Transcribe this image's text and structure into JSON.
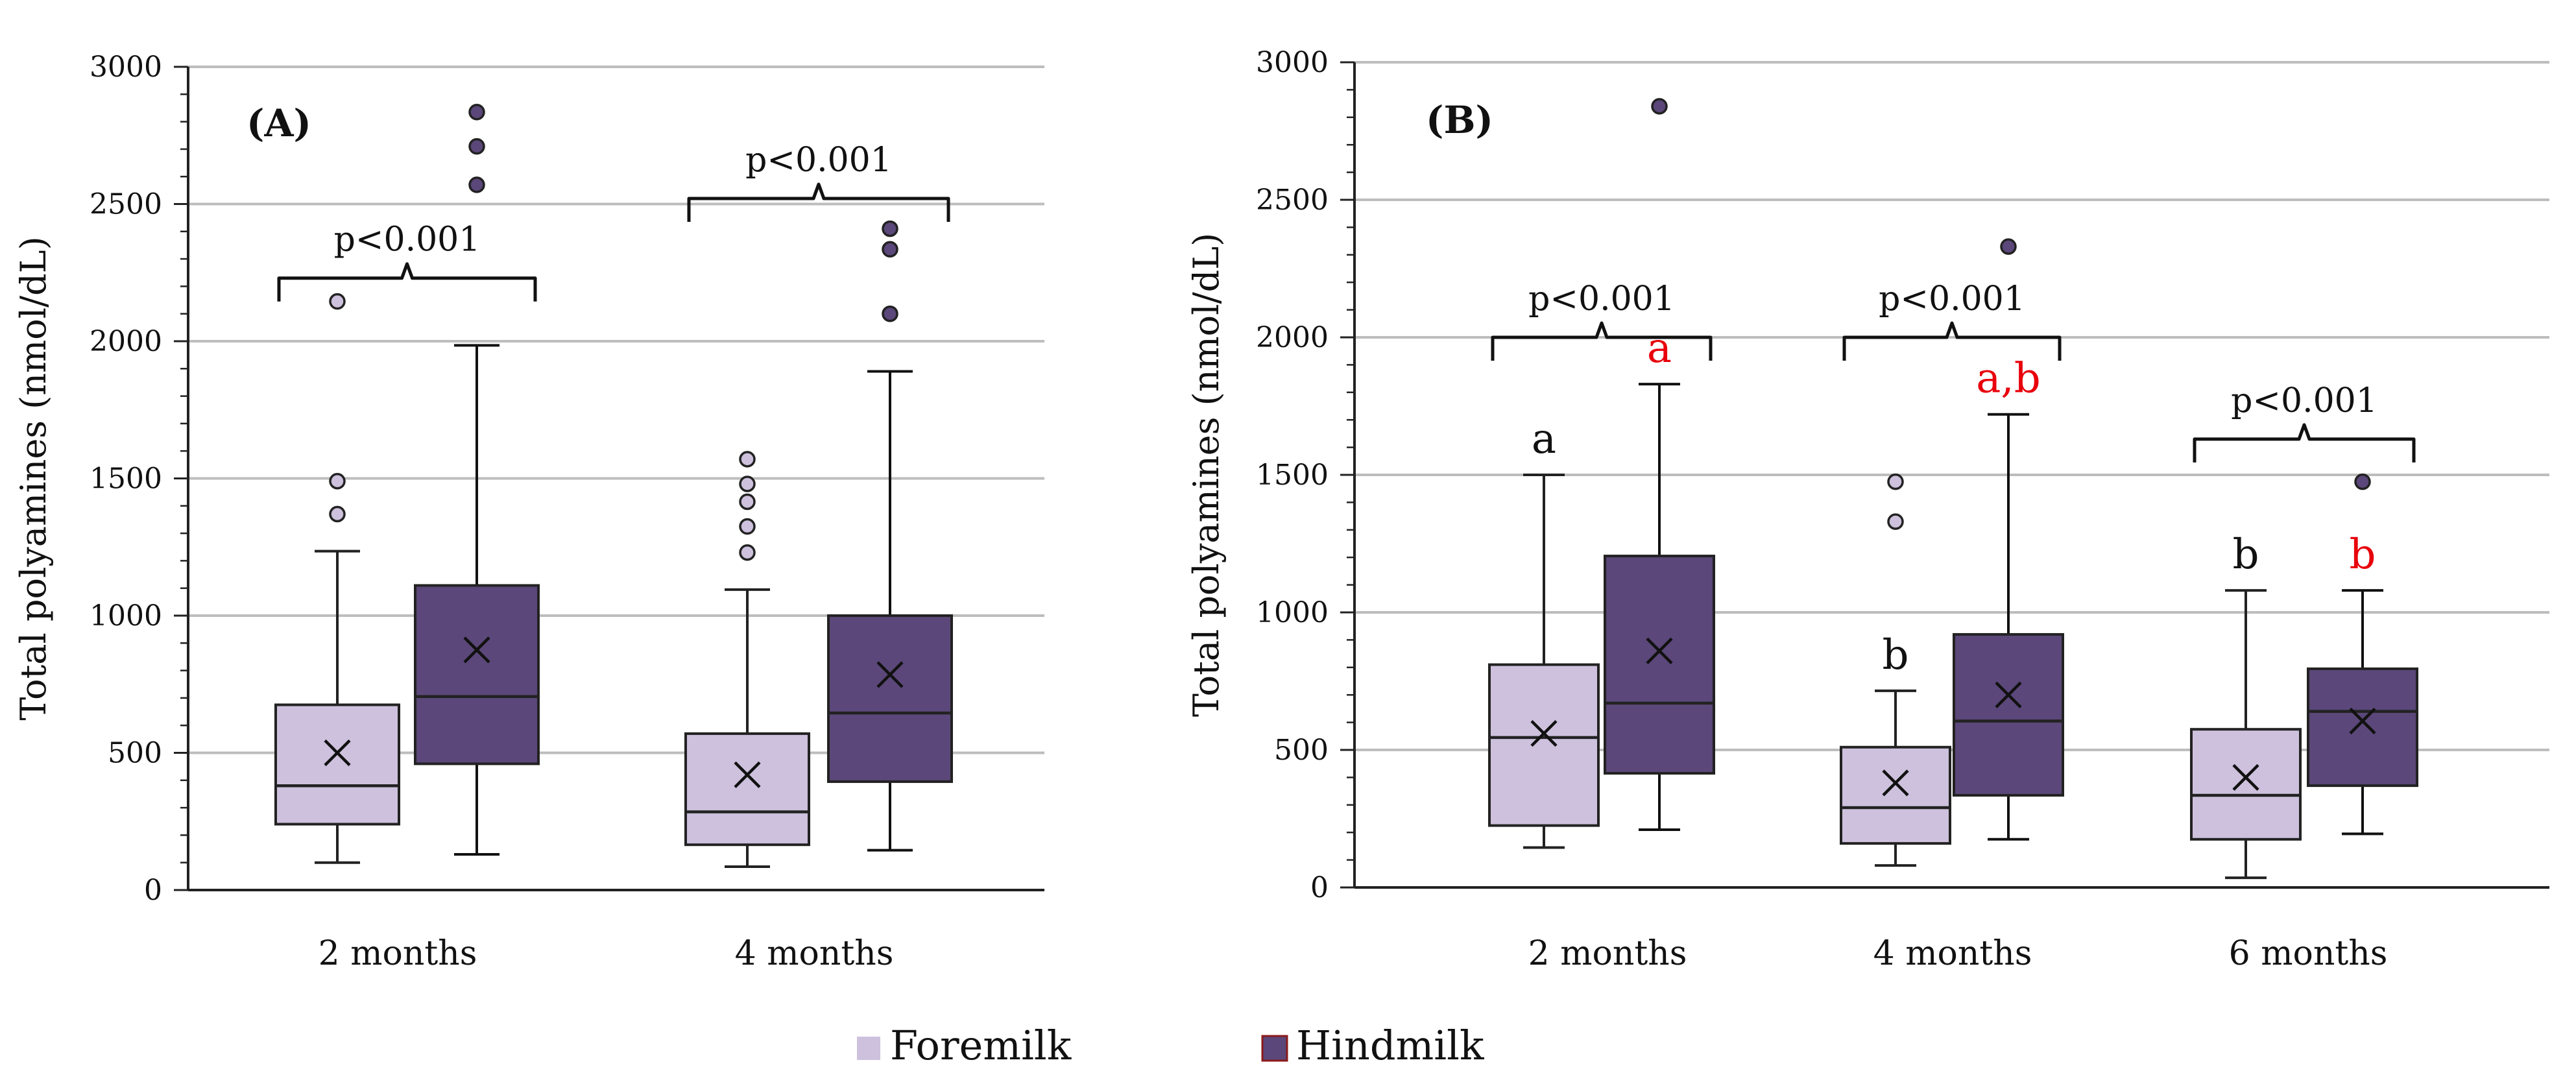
{
  "colors": {
    "foremilk": "#cdc1dd",
    "hindmilk": "#5b4779",
    "outline": "#222222",
    "grid": "#bdbdbd",
    "red_letter": "#e8000b"
  },
  "legend": {
    "foremilk": "Foremilk",
    "hindmilk": "Hindmilk"
  },
  "chart_data": [
    {
      "type": "box",
      "panel_label": "(A)",
      "ylabel": "Total polyamines (nmol/dL)",
      "ylim": [
        0,
        3000
      ],
      "yticks": [
        0,
        500,
        1000,
        1500,
        2000,
        2500,
        3000
      ],
      "ytick_labels": [
        "0",
        "500",
        "1000",
        "1500",
        "2000",
        "2500",
        "3000"
      ],
      "grid": true,
      "categories": [
        "2 months",
        "4 months"
      ],
      "series": [
        {
          "name": "Foremilk",
          "boxes": [
            {
              "whisker_low": 100,
              "q1": 240,
              "median": 380,
              "q3": 675,
              "whisker_high": 1235,
              "mean": 500,
              "outliers": [
                1370,
                1490,
                2145
              ],
              "letter": ""
            },
            {
              "whisker_low": 85,
              "q1": 165,
              "median": 285,
              "q3": 570,
              "whisker_high": 1095,
              "mean": 420,
              "outliers": [
                1230,
                1325,
                1415,
                1480,
                1570
              ],
              "letter": ""
            }
          ]
        },
        {
          "name": "Hindmilk",
          "boxes": [
            {
              "whisker_low": 130,
              "q1": 460,
              "median": 705,
              "q3": 1110,
              "whisker_high": 1985,
              "mean": 875,
              "outliers": [
                2570,
                2710,
                2835
              ],
              "letter": ""
            },
            {
              "whisker_low": 145,
              "q1": 395,
              "median": 645,
              "q3": 1000,
              "whisker_high": 1890,
              "mean": 785,
              "outliers": [
                2100,
                2335,
                2410
              ],
              "letter": ""
            }
          ]
        }
      ],
      "annotations": [
        {
          "category_index": 0,
          "text": "p<0.001",
          "bracket_y": 2230
        },
        {
          "category_index": 1,
          "text": "p<0.001",
          "bracket_y": 2520
        }
      ]
    },
    {
      "type": "box",
      "panel_label": "(B)",
      "ylabel": "Total polyamines (nmol/dL)",
      "ylim": [
        0,
        3000
      ],
      "yticks": [
        0,
        500,
        1000,
        1500,
        2000,
        2500,
        3000
      ],
      "ytick_labels": [
        "0",
        "500",
        "1000",
        "1500",
        "2000",
        "2500",
        "3000"
      ],
      "grid": true,
      "categories": [
        "2 months",
        "4 months",
        "6 months"
      ],
      "series": [
        {
          "name": "Foremilk",
          "boxes": [
            {
              "whisker_low": 145,
              "q1": 225,
              "median": 545,
              "q3": 810,
              "whisker_high": 1500,
              "mean": 560,
              "outliers": [],
              "letter": "a"
            },
            {
              "whisker_low": 80,
              "q1": 160,
              "median": 290,
              "q3": 510,
              "whisker_high": 715,
              "mean": 380,
              "outliers": [
                1330,
                1475
              ],
              "letter": "b"
            },
            {
              "whisker_low": 35,
              "q1": 175,
              "median": 335,
              "q3": 575,
              "whisker_high": 1080,
              "mean": 400,
              "outliers": [],
              "letter": "b"
            }
          ]
        },
        {
          "name": "Hindmilk",
          "boxes": [
            {
              "whisker_low": 210,
              "q1": 415,
              "median": 670,
              "q3": 1205,
              "whisker_high": 1830,
              "mean": 860,
              "outliers": [
                2840
              ],
              "letter": "a"
            },
            {
              "whisker_low": 175,
              "q1": 335,
              "median": 605,
              "q3": 920,
              "whisker_high": 1720,
              "mean": 700,
              "outliers": [
                2330
              ],
              "letter": "a,b"
            },
            {
              "whisker_low": 195,
              "q1": 370,
              "median": 640,
              "q3": 795,
              "whisker_high": 1080,
              "mean": 605,
              "outliers": [
                1475
              ],
              "letter": "b"
            }
          ]
        }
      ],
      "annotations": [
        {
          "category_index": 0,
          "text": "p<0.001",
          "bracket_y": 2000
        },
        {
          "category_index": 1,
          "text": "p<0.001",
          "bracket_y": 2000
        },
        {
          "category_index": 2,
          "text": "p<0.001",
          "bracket_y": 1630
        }
      ]
    }
  ]
}
